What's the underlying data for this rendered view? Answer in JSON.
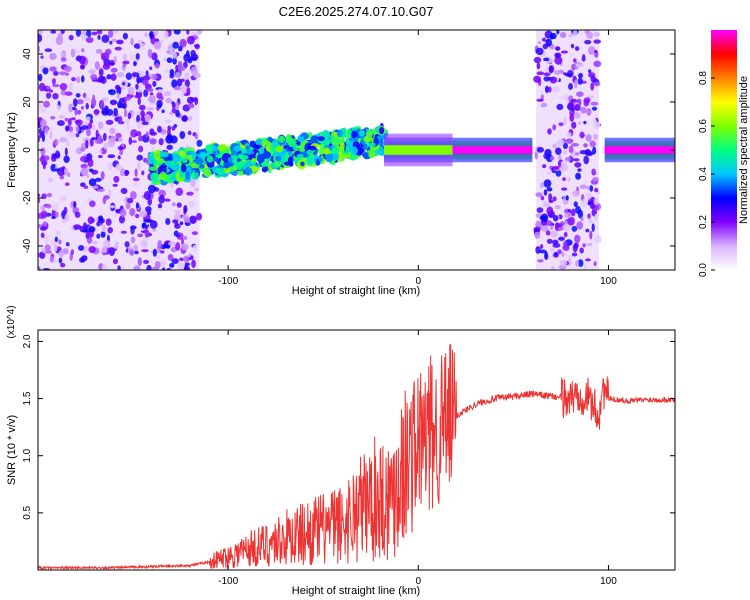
{
  "figure": {
    "title": "C2E6.2025.274.07.10.G07"
  },
  "chart_data": [
    {
      "type": "heatmap",
      "name": "spectrogram",
      "xlabel": "Height of straight line (km)",
      "ylabel": "Frequency (Hz)",
      "xlim": [
        -200,
        135
      ],
      "ylim": [
        -50,
        50
      ],
      "xticks": [
        -100,
        0,
        100
      ],
      "yticks": [
        -40,
        -20,
        0,
        20,
        40
      ],
      "colorbar": {
        "label": "Normalized spectral amplitude",
        "range": [
          0,
          1
        ],
        "ticks": [
          "0.0",
          "0.2",
          "0.4",
          "0.6",
          "0.8"
        ],
        "tick_values": [
          0.0,
          0.2,
          0.4,
          0.6,
          0.8
        ],
        "colormap": [
          "#ffffff",
          "#d9b3ff",
          "#8000ff",
          "#0000ff",
          "#00c8ff",
          "#00ff80",
          "#80ff00",
          "#ffff00",
          "#ff8000",
          "#ff0000",
          "#ff00ff"
        ]
      },
      "regions": [
        {
          "name": "noise-left",
          "x": [
            -200,
            -115
          ],
          "freq_range": [
            -50,
            50
          ],
          "amplitude": 0.15
        },
        {
          "name": "turbulent-band",
          "x": [
            -140,
            -18
          ],
          "freq_center_start": -8,
          "freq_center_end": 4,
          "freq_halfwidth": 6,
          "amplitude": 0.4
        },
        {
          "name": "transition-band",
          "x": [
            -18,
            18
          ],
          "freq_center": 0,
          "freq_halfwidth": 2,
          "amplitude": 0.6
        },
        {
          "name": "steady-line",
          "x": [
            18,
            60
          ],
          "freq_center": 0,
          "freq_halfwidth": 1.5,
          "amplitude": 1.0
        },
        {
          "name": "noise-gap",
          "x": [
            62,
            95
          ],
          "freq_range": [
            -50,
            50
          ],
          "amplitude": 0.15
        },
        {
          "name": "steady-line-right",
          "x": [
            98,
            135
          ],
          "freq_center": 0,
          "freq_halfwidth": 1.5,
          "amplitude": 1.0
        }
      ]
    },
    {
      "type": "line",
      "name": "snr",
      "xlabel": "Height of straight line (km)",
      "ylabel": "SNR (10 * v/v)",
      "y_multiplier": "(x10^4)",
      "xlim": [
        -200,
        135
      ],
      "ylim": [
        0,
        2.1
      ],
      "xticks": [
        -100,
        0,
        100
      ],
      "yticks": [
        0.5,
        1.0,
        1.5,
        2.0
      ],
      "ytick_labels": [
        "0.5",
        "1.0",
        "1.5",
        "2.0"
      ],
      "color": "#ee3333",
      "series": [
        {
          "name": "SNR",
          "x": [
            -200,
            -180,
            -160,
            -140,
            -120,
            -110,
            -100,
            -90,
            -80,
            -70,
            -60,
            -50,
            -40,
            -30,
            -20,
            -15,
            -10,
            0,
            10,
            20,
            30,
            40,
            50,
            60,
            70,
            80,
            85,
            90,
            95,
            97,
            100,
            110,
            120,
            135
          ],
          "y": [
            0.02,
            0.02,
            0.02,
            0.03,
            0.04,
            0.07,
            0.12,
            0.18,
            0.22,
            0.28,
            0.32,
            0.36,
            0.4,
            0.55,
            0.65,
            0.62,
            0.85,
            1.1,
            1.22,
            1.35,
            1.45,
            1.5,
            1.52,
            1.54,
            1.52,
            1.5,
            1.55,
            1.5,
            1.35,
            1.6,
            1.5,
            1.48,
            1.49,
            1.49
          ]
        }
      ]
    }
  ]
}
